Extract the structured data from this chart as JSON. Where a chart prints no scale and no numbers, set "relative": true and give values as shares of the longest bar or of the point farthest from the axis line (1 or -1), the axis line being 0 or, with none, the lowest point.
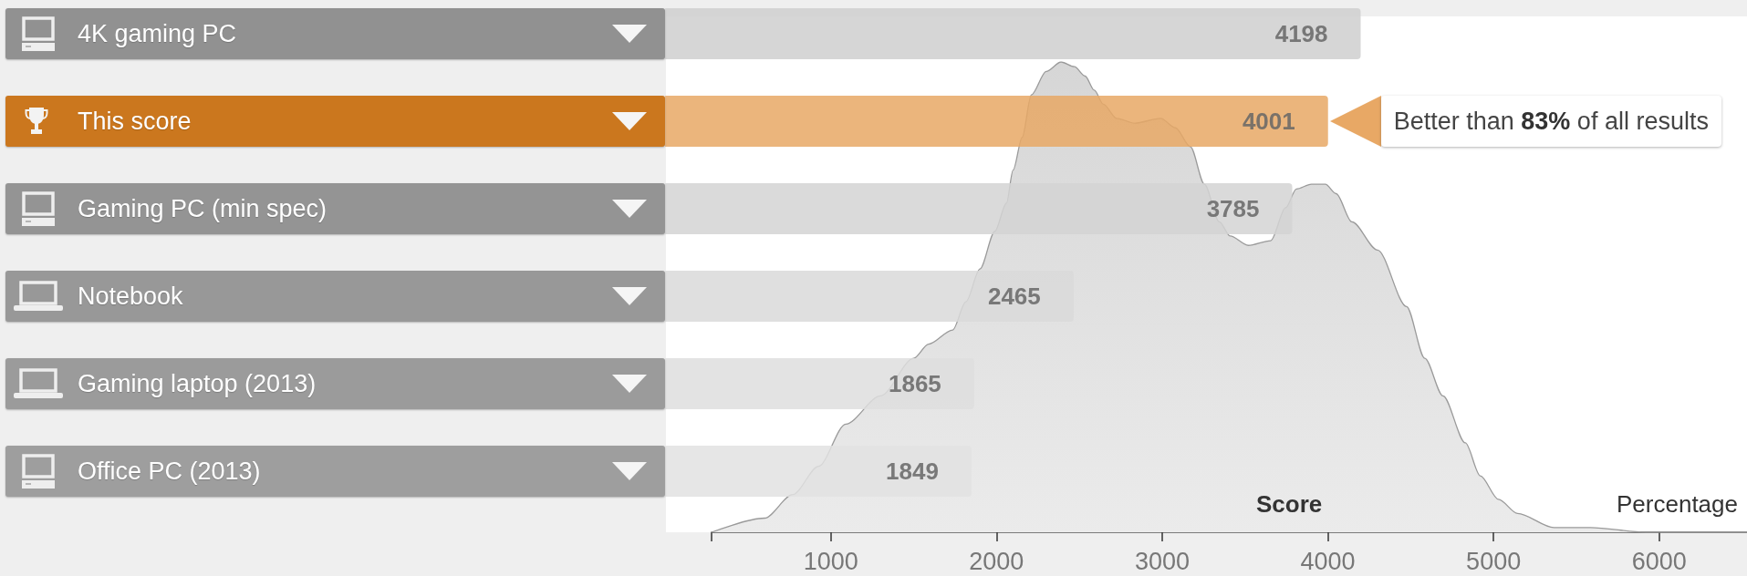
{
  "chart_data": [
    {
      "type": "bar",
      "orientation": "horizontal",
      "categories": [
        "4K gaming PC",
        "This score",
        "Gaming PC (min spec)",
        "Notebook",
        "Gaming laptop (2013)",
        "Office PC (2013)"
      ],
      "values": [
        4198,
        4001,
        3785,
        2465,
        1865,
        1849
      ],
      "colors": [
        "#cfcfcf",
        "#e8a865",
        "#d3d3d3",
        "#d9d9d9",
        "#dedede",
        "#e2e2e2"
      ],
      "data_labels": true,
      "tick_labels": "y",
      "annotations": [
        {
          "text": "Better than 83% of all results",
          "x": 4001,
          "y": "This score"
        }
      ]
    },
    {
      "type": "area",
      "x": [
        280,
        600,
        770,
        925,
        1090,
        1300,
        1500,
        1590,
        1735,
        1815,
        1900,
        1990,
        2060,
        2100,
        2155,
        2210,
        2300,
        2390,
        2470,
        2535,
        2590,
        2645,
        2725,
        2835,
        2990,
        3080,
        3170,
        3255,
        3345,
        3410,
        3520,
        3655,
        3745,
        3810,
        3900,
        3985,
        4050,
        4145,
        4300,
        4475,
        4585,
        4695,
        4830,
        4920,
        5030,
        5145,
        5365,
        5585,
        5920,
        6530
      ],
      "values": [
        0,
        0.03,
        0.08,
        0.14,
        0.23,
        0.29,
        0.37,
        0.4,
        0.43,
        0.49,
        0.56,
        0.64,
        0.7,
        0.77,
        0.84,
        0.93,
        0.98,
        1,
        0.99,
        0.97,
        0.94,
        0.91,
        0.88,
        0.87,
        0.88,
        0.86,
        0.82,
        0.74,
        0.66,
        0.63,
        0.61,
        0.62,
        0.69,
        0.73,
        0.74,
        0.74,
        0.72,
        0.66,
        0.6,
        0.48,
        0.37,
        0.29,
        0.19,
        0.12,
        0.07,
        0.04,
        0.01,
        0.01,
        0,
        0
      ],
      "color": "#d6d6d6",
      "relative": true,
      "xlim": [
        280,
        6530
      ],
      "xticks": [
        {
          "value": 280,
          "label": null
        },
        1000,
        2000,
        3000,
        4000,
        5000,
        6000
      ],
      "xlabel": "Score",
      "ylabel": "Percentage",
      "tick_labels": "x"
    }
  ]
}
